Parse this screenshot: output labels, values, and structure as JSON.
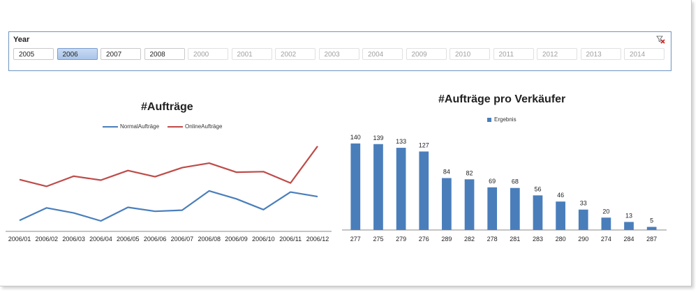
{
  "slicer": {
    "title": "Year",
    "clear_icon": "clear-filter-icon",
    "items": [
      {
        "label": "2005",
        "state": "available"
      },
      {
        "label": "2006",
        "state": "selected"
      },
      {
        "label": "2007",
        "state": "available"
      },
      {
        "label": "2008",
        "state": "available"
      },
      {
        "label": "2000",
        "state": "nodata"
      },
      {
        "label": "2001",
        "state": "nodata"
      },
      {
        "label": "2002",
        "state": "nodata"
      },
      {
        "label": "2003",
        "state": "nodata"
      },
      {
        "label": "2004",
        "state": "nodata"
      },
      {
        "label": "2009",
        "state": "nodata"
      },
      {
        "label": "2010",
        "state": "nodata"
      },
      {
        "label": "2011",
        "state": "nodata"
      },
      {
        "label": "2012",
        "state": "nodata"
      },
      {
        "label": "2013",
        "state": "nodata"
      },
      {
        "label": "2014",
        "state": "nodata"
      }
    ]
  },
  "chart_data": [
    {
      "type": "line",
      "title": "#Aufträge",
      "legend_position": "top",
      "categories": [
        "2006/01",
        "2006/02",
        "2006/03",
        "2006/04",
        "2006/05",
        "2006/06",
        "2006/07",
        "2006/08",
        "2006/09",
        "2006/10",
        "2006/11",
        "2006/12"
      ],
      "series": [
        {
          "name": "NormalAufträge",
          "color": "#4a7ebb",
          "values": [
            17,
            39,
            30,
            16,
            40,
            33,
            35,
            69,
            55,
            36,
            67,
            59
          ]
        },
        {
          "name": "OnlineAufträge",
          "color": "#be4b48",
          "values": [
            89,
            77,
            95,
            88,
            105,
            94,
            110,
            118,
            102,
            103,
            83,
            148
          ]
        }
      ],
      "ylim": [
        0,
        160
      ],
      "grid": false,
      "value_axis_visible": false
    },
    {
      "type": "bar",
      "title": "#Aufträge pro Verkäufer",
      "legend_position": "top",
      "categories": [
        "277",
        "275",
        "279",
        "276",
        "289",
        "282",
        "278",
        "281",
        "283",
        "280",
        "290",
        "274",
        "284",
        "287"
      ],
      "series": [
        {
          "name": "Ergebnis",
          "color": "#4a7ebb",
          "values": [
            140,
            139,
            133,
            127,
            84,
            82,
            69,
            68,
            56,
            46,
            33,
            20,
            13,
            5
          ]
        }
      ],
      "ylim": [
        0,
        150
      ],
      "data_labels": true,
      "grid": false
    }
  ]
}
